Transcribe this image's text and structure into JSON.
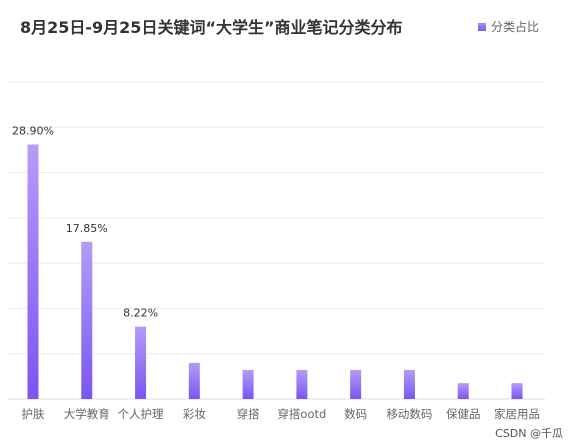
{
  "chart_data": {
    "type": "bar",
    "title": "8月25日-9月25日关键词“大学生”商业笔记分类分布",
    "legend": "分类占比",
    "legend_position": "top-right",
    "categories": [
      "护肤",
      "大学教育",
      "个人护理",
      "彩妆",
      "穿搭",
      "穿搭ootd",
      "数码",
      "移动数码",
      "保健品",
      "家居用品"
    ],
    "values": [
      28.9,
      17.85,
      8.22,
      4.1,
      3.3,
      3.3,
      3.3,
      3.3,
      1.8,
      1.8
    ],
    "data_labels": [
      "28.90%",
      "17.85%",
      "8.22%",
      "",
      "",
      "",
      "",
      "",
      "",
      ""
    ],
    "ylim": [
      0,
      36
    ],
    "grid": true,
    "colors": {
      "bar_top": "#b49cf9",
      "bar_bottom": "#7a55f1",
      "grid": "#ececec"
    }
  },
  "watermark": "CSDN @千瓜"
}
